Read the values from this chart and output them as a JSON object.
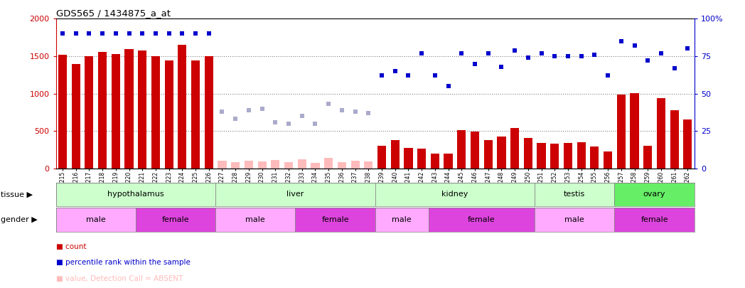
{
  "title": "GDS565 / 1434875_a_at",
  "samples": [
    "GSM19215",
    "GSM19216",
    "GSM19217",
    "GSM19218",
    "GSM19219",
    "GSM19220",
    "GSM19221",
    "GSM19222",
    "GSM19223",
    "GSM19224",
    "GSM19225",
    "GSM19226",
    "GSM19227",
    "GSM19228",
    "GSM19229",
    "GSM19230",
    "GSM19231",
    "GSM19232",
    "GSM19233",
    "GSM19234",
    "GSM19235",
    "GSM19236",
    "GSM19237",
    "GSM19238",
    "GSM19239",
    "GSM19240",
    "GSM19241",
    "GSM19242",
    "GSM19243",
    "GSM19244",
    "GSM19245",
    "GSM19246",
    "GSM19247",
    "GSM19248",
    "GSM19249",
    "GSM19250",
    "GSM19251",
    "GSM19252",
    "GSM19253",
    "GSM19254",
    "GSM19255",
    "GSM19256",
    "GSM19257",
    "GSM19258",
    "GSM19259",
    "GSM19260",
    "GSM19261",
    "GSM19262"
  ],
  "count_values": [
    1520,
    1400,
    1500,
    1560,
    1530,
    1590,
    1580,
    1500,
    1440,
    1650,
    1445,
    1500,
    105,
    85,
    105,
    95,
    110,
    85,
    120,
    80,
    140,
    85,
    105,
    95,
    300,
    380,
    275,
    265,
    195,
    195,
    510,
    490,
    380,
    430,
    540,
    405,
    345,
    335,
    345,
    350,
    290,
    225,
    985,
    1005,
    300,
    940,
    775,
    650
  ],
  "absent_count": [
    false,
    false,
    false,
    false,
    false,
    false,
    false,
    false,
    false,
    false,
    false,
    false,
    true,
    true,
    true,
    true,
    true,
    true,
    true,
    true,
    true,
    true,
    true,
    true,
    false,
    false,
    false,
    false,
    false,
    false,
    false,
    false,
    false,
    false,
    false,
    false,
    false,
    false,
    false,
    false,
    false,
    false,
    false,
    false,
    false,
    false,
    false,
    false
  ],
  "percentile_values": [
    90,
    90,
    90,
    90,
    90,
    90,
    90,
    90,
    90,
    90,
    90,
    90,
    38,
    33,
    39,
    40,
    31,
    30,
    35,
    30,
    43,
    39,
    38,
    37,
    62,
    65,
    62,
    77,
    62,
    55,
    77,
    70,
    77,
    68,
    79,
    74,
    77,
    75,
    75,
    75,
    76,
    62,
    85,
    82,
    72,
    77,
    67,
    80
  ],
  "absent_percentile": [
    false,
    false,
    false,
    false,
    false,
    false,
    false,
    false,
    false,
    false,
    false,
    false,
    true,
    true,
    true,
    true,
    true,
    true,
    true,
    true,
    true,
    true,
    true,
    true,
    false,
    false,
    false,
    false,
    false,
    false,
    false,
    false,
    false,
    false,
    false,
    false,
    false,
    false,
    false,
    false,
    false,
    false,
    false,
    false,
    false,
    false,
    false,
    false
  ],
  "tissues": [
    {
      "name": "hypothalamus",
      "start": 0,
      "end": 11,
      "color": "#ccffcc"
    },
    {
      "name": "liver",
      "start": 12,
      "end": 23,
      "color": "#ccffcc"
    },
    {
      "name": "kidney",
      "start": 24,
      "end": 35,
      "color": "#ccffcc"
    },
    {
      "name": "testis",
      "start": 36,
      "end": 41,
      "color": "#ccffcc"
    },
    {
      "name": "ovary",
      "start": 42,
      "end": 47,
      "color": "#66ee66"
    }
  ],
  "genders": [
    {
      "name": "male",
      "start": 0,
      "end": 5,
      "color": "#ffaaff"
    },
    {
      "name": "female",
      "start": 6,
      "end": 11,
      "color": "#dd44dd"
    },
    {
      "name": "male",
      "start": 12,
      "end": 17,
      "color": "#ffaaff"
    },
    {
      "name": "female",
      "start": 18,
      "end": 23,
      "color": "#dd44dd"
    },
    {
      "name": "male",
      "start": 24,
      "end": 27,
      "color": "#ffaaff"
    },
    {
      "name": "female",
      "start": 28,
      "end": 35,
      "color": "#dd44dd"
    },
    {
      "name": "male",
      "start": 36,
      "end": 41,
      "color": "#ffaaff"
    },
    {
      "name": "female",
      "start": 42,
      "end": 47,
      "color": "#dd44dd"
    }
  ],
  "ylim_left": [
    0,
    2000
  ],
  "yticks_left": [
    0,
    500,
    1000,
    1500,
    2000
  ],
  "pct_ticks": [
    0,
    25,
    50,
    75,
    100
  ],
  "bar_color": "#cc0000",
  "bar_absent_color": "#ffbbbb",
  "dot_color": "#0000cc",
  "dot_absent_color": "#aaaacc",
  "grid_color": "#888888"
}
